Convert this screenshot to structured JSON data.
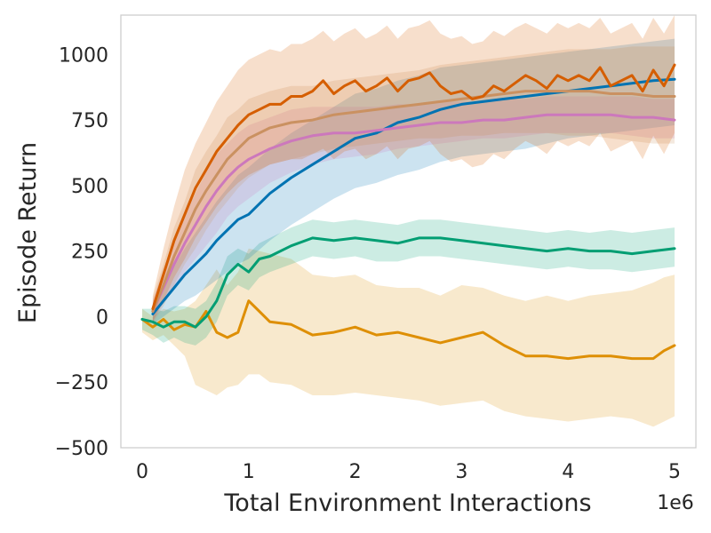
{
  "chart_data": {
    "type": "line",
    "title": "",
    "xlabel": "Total Environment Interactions",
    "ylabel": "Episode Return",
    "x_offset_label": "1e6",
    "xlim": [
      -0.2,
      5.2
    ],
    "ylim": [
      -500,
      1150
    ],
    "xticks": [
      0,
      1,
      2,
      3,
      4,
      5
    ],
    "xtick_labels": [
      "0",
      "1",
      "2",
      "3",
      "4",
      "5"
    ],
    "yticks": [
      -500,
      -250,
      0,
      250,
      500,
      750,
      1000
    ],
    "ytick_labels": [
      "−500",
      "−250",
      "0",
      "250",
      "500",
      "750",
      "1000"
    ],
    "grid": false,
    "legend": "none",
    "series": [
      {
        "name": "orange-yellow",
        "color": "#de8f05",
        "x": [
          0,
          0.1,
          0.2,
          0.3,
          0.4,
          0.5,
          0.6,
          0.7,
          0.8,
          0.9,
          1.0,
          1.1,
          1.2,
          1.4,
          1.6,
          1.8,
          2.0,
          2.2,
          2.4,
          2.6,
          2.8,
          3.0,
          3.2,
          3.4,
          3.6,
          3.8,
          4.0,
          4.2,
          4.4,
          4.6,
          4.8,
          4.9,
          5.0
        ],
        "y": [
          -10,
          -40,
          -10,
          -50,
          -30,
          -40,
          20,
          -60,
          -80,
          -60,
          60,
          20,
          -20,
          -30,
          -70,
          -60,
          -40,
          -70,
          -60,
          -80,
          -100,
          -80,
          -60,
          -110,
          -150,
          -150,
          -160,
          -150,
          -150,
          -160,
          -160,
          -130,
          -110
        ],
        "lower": [
          -60,
          -90,
          -70,
          -110,
          -150,
          -260,
          -280,
          -300,
          -270,
          -260,
          -220,
          -220,
          -250,
          -260,
          -300,
          -300,
          -290,
          -300,
          -310,
          -320,
          -340,
          -330,
          -320,
          -360,
          -380,
          -390,
          -400,
          -390,
          -380,
          -390,
          -420,
          -400,
          -380
        ],
        "upper": [
          30,
          0,
          30,
          20,
          30,
          60,
          120,
          180,
          120,
          170,
          260,
          250,
          240,
          220,
          160,
          150,
          160,
          120,
          110,
          110,
          80,
          120,
          110,
          80,
          60,
          80,
          60,
          80,
          90,
          100,
          130,
          150,
          160
        ]
      },
      {
        "name": "green",
        "color": "#029e73",
        "x": [
          0,
          0.1,
          0.2,
          0.3,
          0.4,
          0.5,
          0.6,
          0.7,
          0.8,
          0.9,
          1.0,
          1.1,
          1.2,
          1.4,
          1.6,
          1.8,
          2.0,
          2.2,
          2.4,
          2.6,
          2.8,
          3.0,
          3.2,
          3.4,
          3.6,
          3.8,
          4.0,
          4.2,
          4.4,
          4.6,
          4.8,
          5.0
        ],
        "y": [
          -10,
          -20,
          -40,
          -20,
          -20,
          -40,
          0,
          60,
          160,
          200,
          170,
          220,
          230,
          270,
          300,
          290,
          300,
          290,
          280,
          300,
          300,
          290,
          280,
          270,
          260,
          250,
          260,
          250,
          250,
          240,
          250,
          260
        ],
        "lower": [
          -50,
          -70,
          -100,
          -80,
          -100,
          -110,
          -80,
          -20,
          80,
          120,
          100,
          150,
          170,
          200,
          230,
          220,
          230,
          210,
          210,
          230,
          230,
          220,
          210,
          200,
          190,
          180,
          190,
          180,
          180,
          170,
          180,
          190
        ],
        "upper": [
          30,
          30,
          20,
          40,
          40,
          30,
          60,
          130,
          230,
          260,
          240,
          280,
          300,
          340,
          370,
          360,
          370,
          360,
          350,
          370,
          370,
          360,
          350,
          340,
          330,
          320,
          330,
          320,
          330,
          320,
          330,
          340
        ]
      },
      {
        "name": "blue",
        "color": "#0173b2",
        "x": [
          0.1,
          0.2,
          0.3,
          0.4,
          0.5,
          0.6,
          0.7,
          0.8,
          0.9,
          1.0,
          1.2,
          1.4,
          1.6,
          1.8,
          2.0,
          2.2,
          2.4,
          2.6,
          2.8,
          3.0,
          3.2,
          3.4,
          3.6,
          3.8,
          4.0,
          4.2,
          4.4,
          4.6,
          4.8,
          5.0
        ],
        "y": [
          10,
          60,
          110,
          160,
          200,
          240,
          290,
          330,
          370,
          390,
          470,
          530,
          580,
          630,
          680,
          700,
          740,
          760,
          790,
          810,
          820,
          830,
          840,
          850,
          860,
          870,
          880,
          890,
          900,
          905
        ],
        "lower": [
          -30,
          0,
          30,
          60,
          80,
          110,
          140,
          170,
          200,
          220,
          290,
          350,
          400,
          450,
          490,
          510,
          540,
          560,
          590,
          610,
          620,
          630,
          640,
          660,
          680,
          690,
          700,
          710,
          720,
          730
        ],
        "upper": [
          50,
          120,
          190,
          260,
          320,
          380,
          440,
          490,
          540,
          570,
          640,
          700,
          750,
          800,
          850,
          870,
          900,
          920,
          950,
          960,
          970,
          980,
          990,
          1000,
          1010,
          1020,
          1030,
          1040,
          1050,
          1060
        ]
      },
      {
        "name": "pink",
        "color": "#cc78bc",
        "x": [
          0.1,
          0.2,
          0.3,
          0.4,
          0.5,
          0.6,
          0.7,
          0.8,
          0.9,
          1.0,
          1.2,
          1.4,
          1.6,
          1.8,
          2.0,
          2.2,
          2.4,
          2.6,
          2.8,
          3.0,
          3.2,
          3.4,
          3.6,
          3.8,
          4.0,
          4.2,
          4.4,
          4.6,
          4.8,
          5.0
        ],
        "y": [
          20,
          110,
          200,
          280,
          350,
          420,
          480,
          530,
          570,
          600,
          640,
          670,
          690,
          700,
          700,
          710,
          720,
          730,
          740,
          740,
          750,
          750,
          760,
          770,
          770,
          770,
          770,
          760,
          760,
          750
        ],
        "lower": [
          -20,
          50,
          110,
          170,
          220,
          270,
          320,
          380,
          420,
          450,
          510,
          550,
          580,
          600,
          610,
          620,
          640,
          650,
          660,
          670,
          680,
          680,
          690,
          700,
          700,
          700,
          700,
          690,
          680,
          680
        ],
        "upper": [
          60,
          180,
          290,
          390,
          470,
          550,
          620,
          660,
          700,
          730,
          760,
          790,
          800,
          800,
          800,
          800,
          810,
          810,
          820,
          820,
          820,
          830,
          830,
          840,
          840,
          840,
          840,
          840,
          830,
          830
        ]
      },
      {
        "name": "brown",
        "color": "#ca9161",
        "x": [
          0.1,
          0.2,
          0.3,
          0.4,
          0.5,
          0.6,
          0.7,
          0.8,
          0.9,
          1.0,
          1.2,
          1.4,
          1.6,
          1.8,
          2.0,
          2.2,
          2.4,
          2.6,
          2.8,
          3.0,
          3.2,
          3.4,
          3.6,
          3.8,
          4.0,
          4.2,
          4.4,
          4.6,
          4.8,
          5.0
        ],
        "y": [
          20,
          120,
          230,
          320,
          410,
          480,
          540,
          600,
          640,
          680,
          720,
          740,
          750,
          770,
          780,
          790,
          800,
          810,
          820,
          830,
          840,
          850,
          860,
          860,
          860,
          860,
          850,
          850,
          840,
          840
        ],
        "lower": [
          -30,
          40,
          120,
          200,
          260,
          330,
          390,
          440,
          490,
          530,
          580,
          600,
          620,
          640,
          650,
          660,
          670,
          680,
          680,
          690,
          690,
          700,
          700,
          700,
          690,
          690,
          680,
          670,
          660,
          660
        ],
        "upper": [
          70,
          200,
          340,
          440,
          560,
          630,
          690,
          760,
          790,
          830,
          860,
          880,
          880,
          900,
          910,
          920,
          930,
          940,
          960,
          970,
          980,
          990,
          1000,
          1010,
          1020,
          1020,
          1020,
          1030,
          1030,
          1030
        ]
      },
      {
        "name": "dark-orange",
        "color": "#d55e00",
        "x": [
          0.1,
          0.2,
          0.3,
          0.4,
          0.5,
          0.6,
          0.7,
          0.8,
          0.9,
          1.0,
          1.1,
          1.2,
          1.3,
          1.4,
          1.5,
          1.6,
          1.7,
          1.8,
          1.9,
          2.0,
          2.1,
          2.2,
          2.3,
          2.4,
          2.5,
          2.6,
          2.7,
          2.8,
          2.9,
          3.0,
          3.1,
          3.2,
          3.3,
          3.4,
          3.5,
          3.6,
          3.7,
          3.8,
          3.9,
          4.0,
          4.1,
          4.2,
          4.3,
          4.4,
          4.5,
          4.6,
          4.7,
          4.8,
          4.9,
          5.0
        ],
        "y": [
          30,
          160,
          290,
          390,
          490,
          560,
          630,
          680,
          730,
          770,
          790,
          810,
          810,
          840,
          840,
          860,
          900,
          850,
          880,
          900,
          860,
          880,
          910,
          860,
          900,
          910,
          930,
          880,
          850,
          860,
          830,
          840,
          880,
          860,
          890,
          920,
          900,
          870,
          920,
          900,
          920,
          900,
          950,
          880,
          900,
          920,
          860,
          940,
          880,
          960
        ],
        "lower": [
          -20,
          60,
          150,
          220,
          300,
          360,
          420,
          470,
          510,
          540,
          560,
          580,
          590,
          600,
          600,
          620,
          640,
          600,
          630,
          640,
          600,
          620,
          650,
          600,
          640,
          650,
          670,
          620,
          590,
          600,
          570,
          580,
          620,
          600,
          640,
          670,
          650,
          620,
          670,
          650,
          670,
          650,
          700,
          630,
          650,
          670,
          600,
          690,
          620,
          700
        ],
        "upper": [
          80,
          260,
          420,
          560,
          660,
          740,
          820,
          880,
          940,
          980,
          1000,
          1020,
          1010,
          1040,
          1040,
          1060,
          1090,
          1050,
          1080,
          1100,
          1060,
          1080,
          1110,
          1060,
          1100,
          1110,
          1130,
          1080,
          1060,
          1070,
          1040,
          1050,
          1090,
          1070,
          1100,
          1120,
          1100,
          1080,
          1120,
          1100,
          1120,
          1100,
          1140,
          1080,
          1100,
          1120,
          1060,
          1140,
          1080,
          1150
        ]
      }
    ]
  }
}
